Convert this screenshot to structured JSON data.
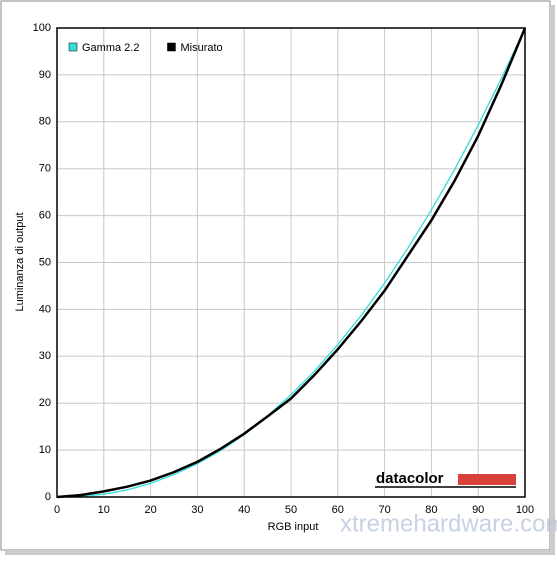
{
  "chart_data": {
    "type": "line",
    "x": [
      0,
      5,
      10,
      15,
      20,
      25,
      30,
      35,
      40,
      45,
      50,
      55,
      60,
      65,
      70,
      75,
      80,
      85,
      90,
      95,
      100
    ],
    "series": [
      {
        "name": "Gamma 2.2",
        "color": "#33dddd",
        "values": [
          0,
          0.1,
          0.6,
          1.5,
          2.9,
          4.8,
          7.1,
          9.9,
          13.3,
          17.3,
          21.8,
          26.8,
          32.5,
          38.7,
          45.6,
          53.1,
          61.2,
          69.9,
          79.3,
          89.3,
          100
        ]
      },
      {
        "name": "Misurato",
        "color": "#000000",
        "values": [
          0,
          0.4,
          1.2,
          2.2,
          3.5,
          5.3,
          7.5,
          10.3,
          13.5,
          17.2,
          21,
          26,
          31.5,
          37.5,
          44,
          51.5,
          59,
          67.5,
          77,
          88,
          100
        ]
      }
    ],
    "xlabel": "RGB input",
    "ylabel": "Luminanza di output",
    "xlim": [
      0,
      100
    ],
    "ylim": [
      0,
      100
    ],
    "xticks": [
      0,
      10,
      20,
      30,
      40,
      50,
      60,
      70,
      80,
      90,
      100
    ],
    "yticks": [
      0,
      10,
      20,
      30,
      40,
      50,
      60,
      70,
      80,
      90,
      100
    ],
    "grid": true,
    "legend": "top-left",
    "annotations": [
      "datacolor",
      "xtremehardware.com"
    ]
  }
}
